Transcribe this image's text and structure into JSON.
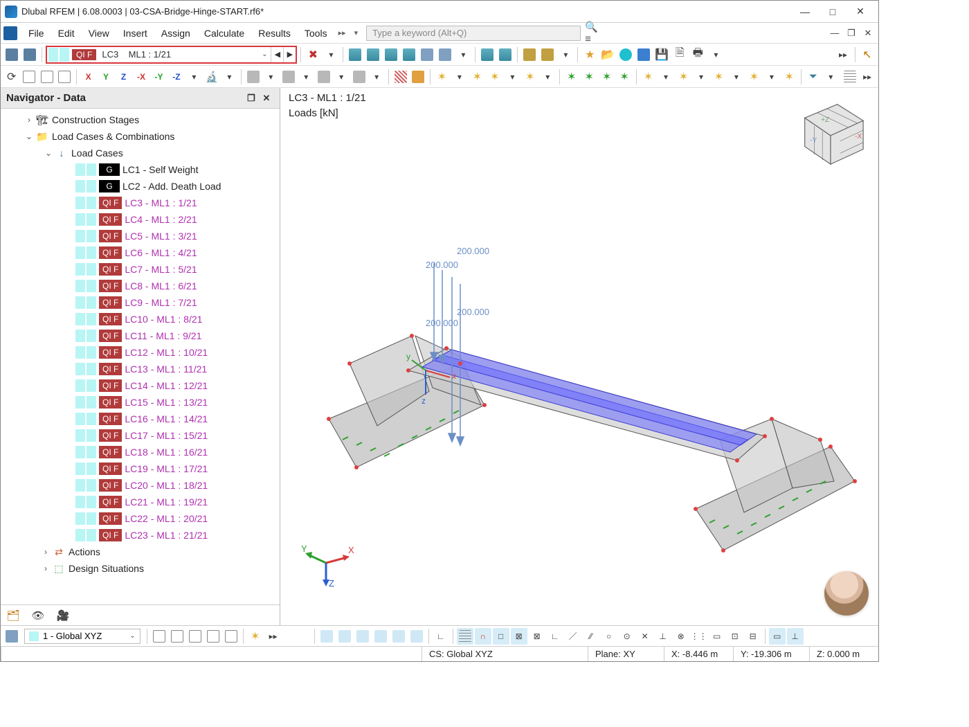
{
  "window": {
    "title": "Dlubal RFEM | 6.08.0003 | 03-CSA-Bridge-Hinge-START.rf6*"
  },
  "menu": {
    "items": [
      "File",
      "Edit",
      "View",
      "Insert",
      "Assign",
      "Calculate",
      "Results",
      "Tools"
    ],
    "search_placeholder": "Type a keyword (Alt+Q)"
  },
  "lc_selector": {
    "tag": "QI F",
    "lc": "LC3",
    "detail": "ML1 : 1/21",
    "highlight_color": "#d9363e",
    "tag_bg": "#b13a3a",
    "swatch": "#b8f5f5"
  },
  "navigator": {
    "title": "Navigator - Data",
    "top_nodes": [
      {
        "label": "Construction Stages",
        "expanded": false
      },
      {
        "label": "Load Cases & Combinations",
        "expanded": true
      }
    ],
    "loadcases_label": "Load Cases",
    "actions_label": "Actions",
    "design_label": "Design Situations",
    "load_cases": [
      {
        "tag": "G",
        "tag_style": "g",
        "text": "LC1 - Self Weight",
        "txt_style": "black"
      },
      {
        "tag": "G",
        "tag_style": "g",
        "text": "LC2 - Add. Death Load",
        "txt_style": "black"
      },
      {
        "tag": "QI F",
        "tag_style": "qif",
        "text": "LC3 - ML1 : 1/21",
        "txt_style": "mag"
      },
      {
        "tag": "QI F",
        "tag_style": "qif",
        "text": "LC4 - ML1 : 2/21",
        "txt_style": "mag"
      },
      {
        "tag": "QI F",
        "tag_style": "qif",
        "text": "LC5 - ML1 : 3/21",
        "txt_style": "mag"
      },
      {
        "tag": "QI F",
        "tag_style": "qif",
        "text": "LC6 - ML1 : 4/21",
        "txt_style": "mag"
      },
      {
        "tag": "QI F",
        "tag_style": "qif",
        "text": "LC7 - ML1 : 5/21",
        "txt_style": "mag"
      },
      {
        "tag": "QI F",
        "tag_style": "qif",
        "text": "LC8 - ML1 : 6/21",
        "txt_style": "mag"
      },
      {
        "tag": "QI F",
        "tag_style": "qif",
        "text": "LC9 - ML1 : 7/21",
        "txt_style": "mag"
      },
      {
        "tag": "QI F",
        "tag_style": "qif",
        "text": "LC10 - ML1 : 8/21",
        "txt_style": "mag"
      },
      {
        "tag": "QI F",
        "tag_style": "qif",
        "text": "LC11 - ML1 : 9/21",
        "txt_style": "mag"
      },
      {
        "tag": "QI F",
        "tag_style": "qif",
        "text": "LC12 - ML1 : 10/21",
        "txt_style": "mag"
      },
      {
        "tag": "QI F",
        "tag_style": "qif",
        "text": "LC13 - ML1 : 11/21",
        "txt_style": "mag"
      },
      {
        "tag": "QI F",
        "tag_style": "qif",
        "text": "LC14 - ML1 : 12/21",
        "txt_style": "mag"
      },
      {
        "tag": "QI F",
        "tag_style": "qif",
        "text": "LC15 - ML1 : 13/21",
        "txt_style": "mag"
      },
      {
        "tag": "QI F",
        "tag_style": "qif",
        "text": "LC16 - ML1 : 14/21",
        "txt_style": "mag"
      },
      {
        "tag": "QI F",
        "tag_style": "qif",
        "text": "LC17 - ML1 : 15/21",
        "txt_style": "mag"
      },
      {
        "tag": "QI F",
        "tag_style": "qif",
        "text": "LC18 - ML1 : 16/21",
        "txt_style": "mag"
      },
      {
        "tag": "QI F",
        "tag_style": "qif",
        "text": "LC19 - ML1 : 17/21",
        "txt_style": "mag"
      },
      {
        "tag": "QI F",
        "tag_style": "qif",
        "text": "LC20 - ML1 : 18/21",
        "txt_style": "mag"
      },
      {
        "tag": "QI F",
        "tag_style": "qif",
        "text": "LC21 - ML1 : 19/21",
        "txt_style": "mag"
      },
      {
        "tag": "QI F",
        "tag_style": "qif",
        "text": "LC22 - ML1 : 20/21",
        "txt_style": "mag"
      },
      {
        "tag": "QI F",
        "tag_style": "qif",
        "text": "LC23 - ML1 : 21/21",
        "txt_style": "mag"
      }
    ]
  },
  "viewport": {
    "title": "LC3 - ML1 : 1/21",
    "subtitle": "Loads [kN]",
    "load_values": [
      "200.000",
      "200.000",
      "200.000",
      "200.000"
    ],
    "triad": {
      "x": "X",
      "y": "Y",
      "z": "Z"
    },
    "colors": {
      "lane_fill": "#6a6aff",
      "lane_fill_opacity": 0.55,
      "slab_fill": "#d0d0d0",
      "slab_stroke": "#555555",
      "node_color": "#e04040",
      "support_color": "#2fa02f",
      "load_color": "#6b8fc7",
      "axis_x": "#d83a3a",
      "axis_y": "#2fa02f",
      "axis_z": "#2b5fd6",
      "cube_fill": "#e4e4e4",
      "cube_stroke": "#666666"
    }
  },
  "bottom": {
    "cs_label": "1 - Global XYZ"
  },
  "status": {
    "cs": "CS: Global XYZ",
    "plane": "Plane: XY",
    "x": "X: -8.446 m",
    "y": "Y: -19.306 m",
    "z": "Z: 0.000 m"
  }
}
